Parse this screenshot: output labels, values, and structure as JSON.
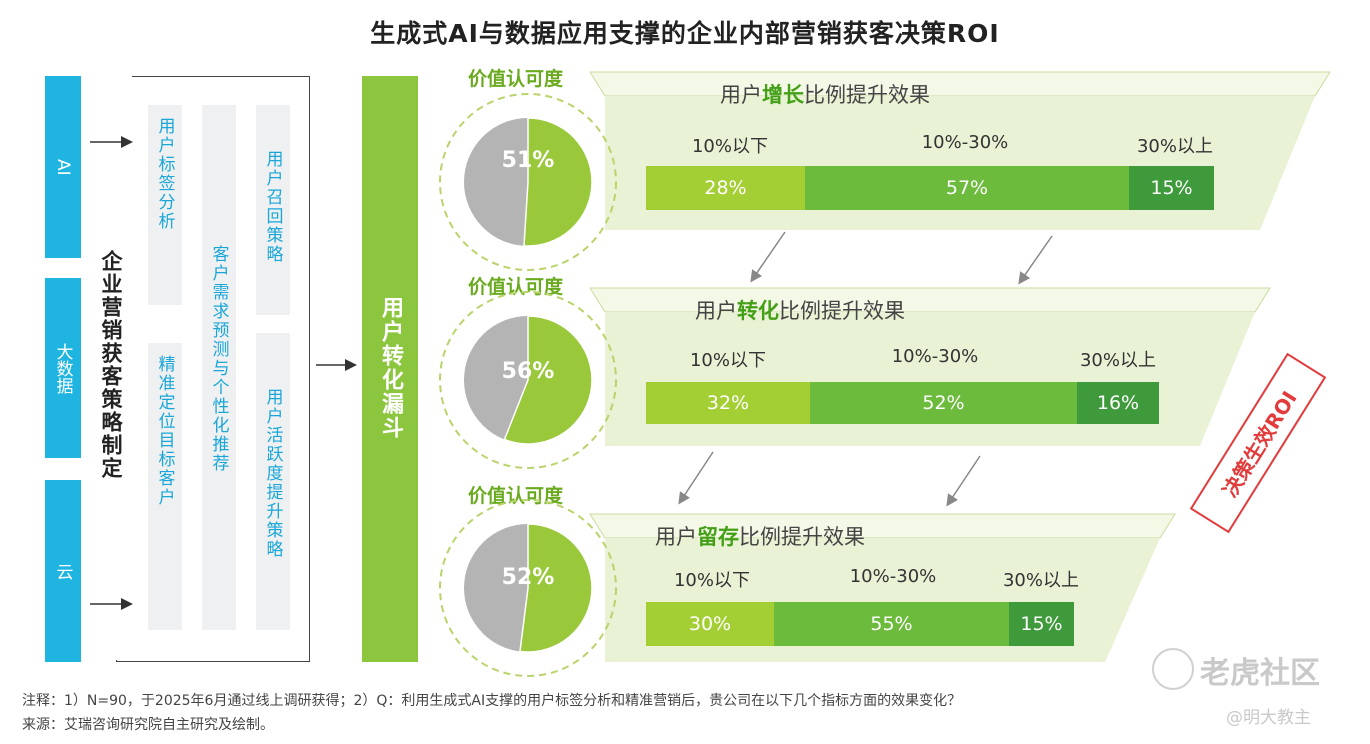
{
  "title": "生成式AI与数据应用支撑的企业内部营销获客决策ROI",
  "inputs": [
    "AI",
    "大数据",
    "云"
  ],
  "strategy_label": "企业营销获客策略制定",
  "strategies": {
    "tag_analysis": "用户标签分析",
    "precise_targeting": "精准定位目标客户",
    "demand_prediction": "客户需求预测与个性化推荐",
    "recall": "用户召回策略",
    "activity": "用户活跃度提升策略"
  },
  "funnel_label": "用户转化漏斗",
  "value_label": "价值认可度",
  "stamp": "决策生效ROI",
  "categories": [
    "10%以下",
    "10%-30%",
    "30%以上"
  ],
  "colors": {
    "light": "#a3cf34",
    "mid": "#6cbb3c",
    "dark": "#3f9a3b",
    "pie_green": "#99c93b",
    "pie_gray": "#b4b4b4"
  },
  "chart_data": [
    {
      "type": "pie",
      "title_pre": "用户",
      "title_bold": "增长",
      "title_post": "比例提升效果",
      "recognition": 51,
      "recognition_label": "51%",
      "categories": [
        "10%以下",
        "10%-30%",
        "30%以上"
      ],
      "values": [
        28,
        57,
        15
      ],
      "value_labels": [
        "28%",
        "57%",
        "15%"
      ]
    },
    {
      "type": "pie",
      "title_pre": "用户",
      "title_bold": "转化",
      "title_post": "比例提升效果",
      "recognition": 56,
      "recognition_label": "56%",
      "categories": [
        "10%以下",
        "10%-30%",
        "30%以上"
      ],
      "values": [
        32,
        52,
        16
      ],
      "value_labels": [
        "32%",
        "52%",
        "16%"
      ]
    },
    {
      "type": "pie",
      "title_pre": "用户",
      "title_bold": "留存",
      "title_post": "比例提升效果",
      "recognition": 52,
      "recognition_label": "52%",
      "categories": [
        "10%以下",
        "10%-30%",
        "30%以上"
      ],
      "values": [
        30,
        55,
        15
      ],
      "value_labels": [
        "30%",
        "55%",
        "15%"
      ]
    }
  ],
  "notes": {
    "line1": "注释：1）N=90，于2025年6月通过线上调研获得；2）Q：利用生成式AI支撑的用户标签分析和精准营销后，贵公司在以下几个指标方面的效果变化？",
    "line2": "来源：艾瑞咨询研究院自主研究及绘制。"
  },
  "watermark": {
    "brand": "老虎社区",
    "handle": "@明大教主"
  }
}
